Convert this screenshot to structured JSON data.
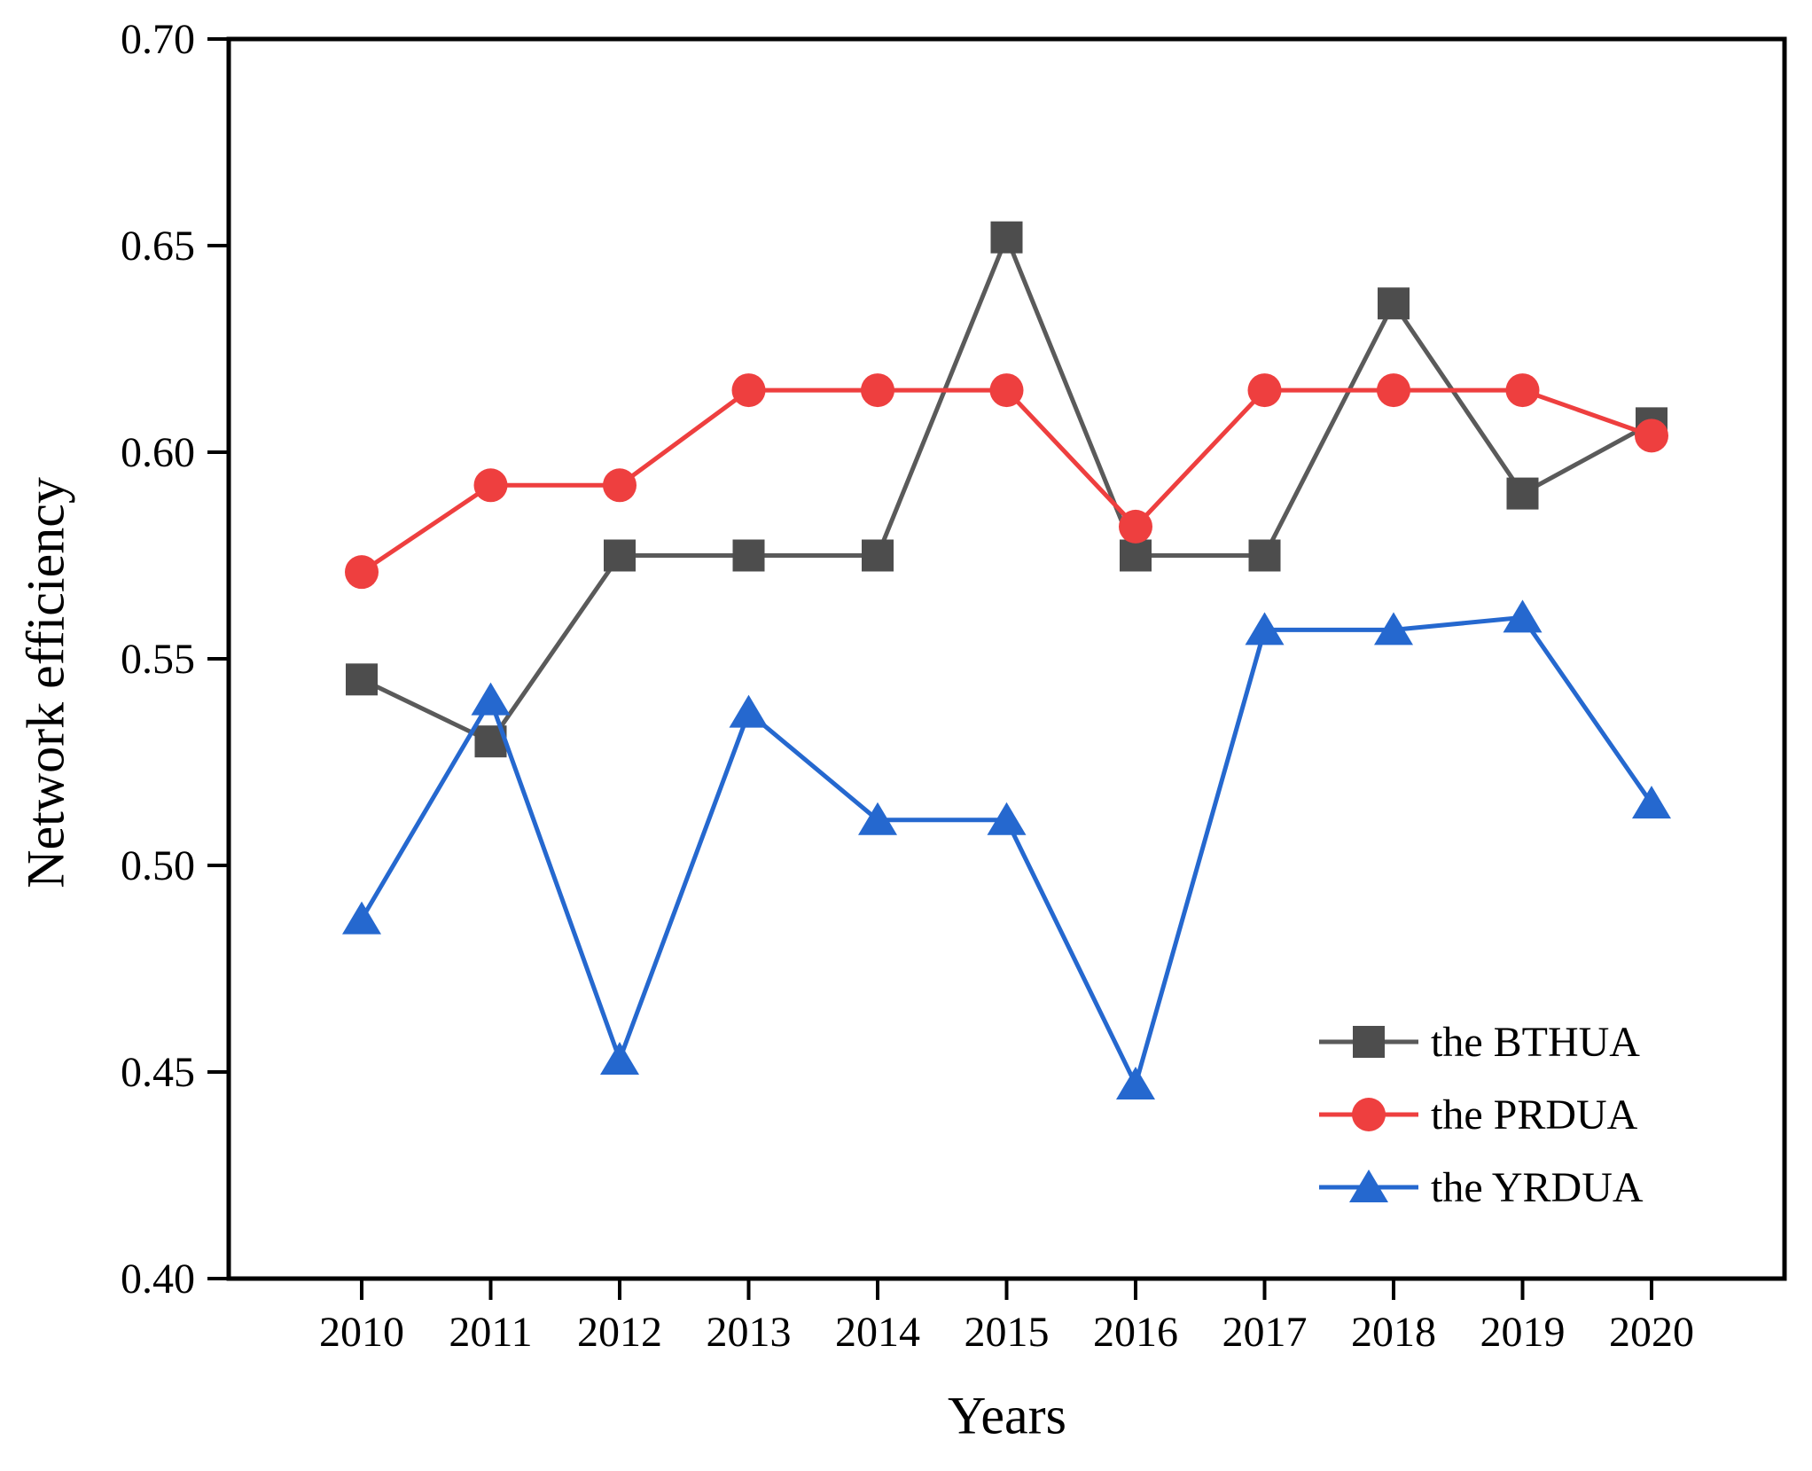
{
  "figure": {
    "background": "#ffffff",
    "frame_color": "#000000"
  },
  "chart_data": {
    "type": "line",
    "title": "",
    "xlabel": "Years",
    "ylabel": "Network efficiency",
    "ylim": [
      0.4,
      0.7
    ],
    "grid": false,
    "legend_position": "inside-bottom-right",
    "x": [
      2010,
      2011,
      2012,
      2013,
      2014,
      2015,
      2016,
      2017,
      2018,
      2019,
      2020
    ],
    "x_tick_labels": [
      "2010",
      "2011",
      "2012",
      "2013",
      "2014",
      "2015",
      "2016",
      "2017",
      "2018",
      "2019",
      "2020"
    ],
    "y_tick_labels": [
      "0.40",
      "0.45",
      "0.50",
      "0.55",
      "0.60",
      "0.65",
      "0.70"
    ],
    "series": [
      {
        "name": "the BTHUA",
        "marker": "square",
        "color": "#4d4d4d",
        "line_color": "#5a5a5a",
        "values": [
          0.545,
          0.53,
          0.575,
          0.575,
          0.575,
          0.652,
          0.575,
          0.575,
          0.636,
          0.59,
          0.607
        ]
      },
      {
        "name": "the PRDUA",
        "marker": "circle",
        "color": "#ee3f3f",
        "line_color": "#ee3f3f",
        "values": [
          0.571,
          0.592,
          0.592,
          0.615,
          0.615,
          0.615,
          0.582,
          0.615,
          0.615,
          0.615,
          0.604
        ]
      },
      {
        "name": "the YRDUA",
        "marker": "triangle",
        "color": "#2568cf",
        "line_color": "#2568cf",
        "values": [
          0.487,
          0.54,
          0.453,
          0.537,
          0.511,
          0.511,
          0.447,
          0.557,
          0.557,
          0.56,
          0.515
        ]
      }
    ]
  }
}
